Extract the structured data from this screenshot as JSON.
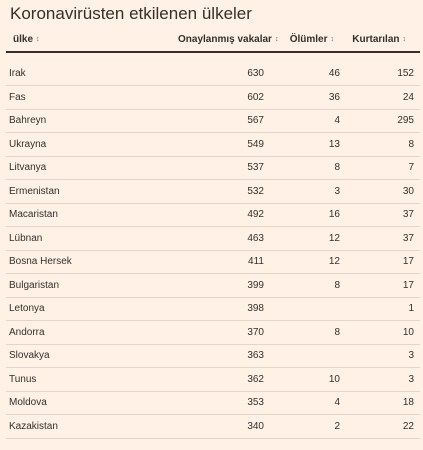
{
  "title": "Koronavirüsten etkilenen ülkeler",
  "sort_glyph": "↕",
  "columns": [
    {
      "label": "ülke"
    },
    {
      "label": "Onaylanmış vakalar"
    },
    {
      "label": "Ölümler"
    },
    {
      "label": "Kurtarılan"
    }
  ],
  "rows": [
    {
      "country": "Irak",
      "cases": "630",
      "deaths": "46",
      "recovered": "152"
    },
    {
      "country": "Fas",
      "cases": "602",
      "deaths": "36",
      "recovered": "24"
    },
    {
      "country": "Bahreyn",
      "cases": "567",
      "deaths": "4",
      "recovered": "295"
    },
    {
      "country": "Ukrayna",
      "cases": "549",
      "deaths": "13",
      "recovered": "8"
    },
    {
      "country": "Litvanya",
      "cases": "537",
      "deaths": "8",
      "recovered": "7"
    },
    {
      "country": "Ermenistan",
      "cases": "532",
      "deaths": "3",
      "recovered": "30"
    },
    {
      "country": "Macaristan",
      "cases": "492",
      "deaths": "16",
      "recovered": "37"
    },
    {
      "country": "Lübnan",
      "cases": "463",
      "deaths": "12",
      "recovered": "37"
    },
    {
      "country": "Bosna Hersek",
      "cases": "411",
      "deaths": "12",
      "recovered": "17"
    },
    {
      "country": "Bulgaristan",
      "cases": "399",
      "deaths": "8",
      "recovered": "17"
    },
    {
      "country": "Letonya",
      "cases": "398",
      "deaths": "",
      "recovered": "1"
    },
    {
      "country": "Andorra",
      "cases": "370",
      "deaths": "8",
      "recovered": "10"
    },
    {
      "country": "Slovakya",
      "cases": "363",
      "deaths": "",
      "recovered": "3"
    },
    {
      "country": "Tunus",
      "cases": "362",
      "deaths": "10",
      "recovered": "3"
    },
    {
      "country": "Moldova",
      "cases": "353",
      "deaths": "4",
      "recovered": "18"
    },
    {
      "country": "Kazakistan",
      "cases": "340",
      "deaths": "2",
      "recovered": "22"
    }
  ]
}
